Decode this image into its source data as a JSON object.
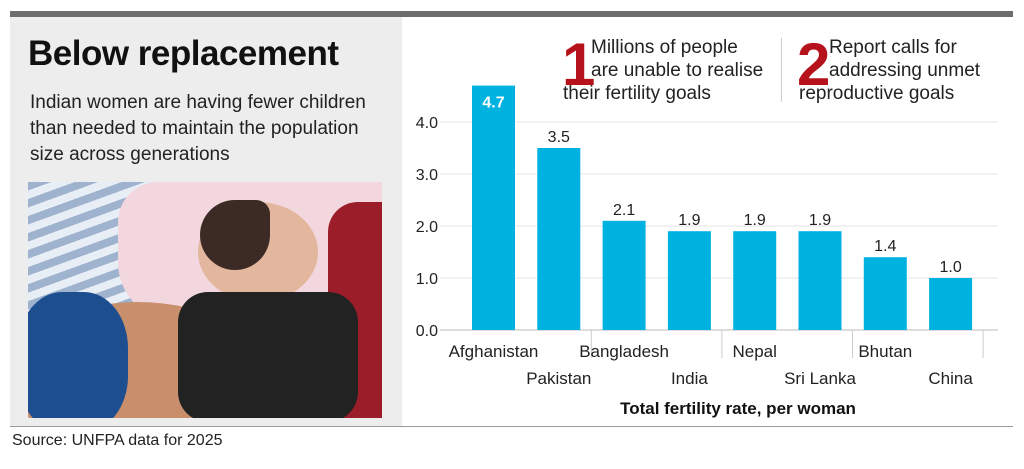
{
  "title": "Below replacement",
  "subtitle": "Indian women are having fewer children than needed to maintain the population size across generations",
  "notes": [
    {
      "number": "1",
      "text_line1": "Millions of people",
      "text_line2": "are unable to realise",
      "text_line3": "their fertility goals"
    },
    {
      "number": "2",
      "text_line1": "Report calls for",
      "text_line2": "addressing unmet",
      "text_line3": "reproductive goals"
    }
  ],
  "source": "Source: UNFPA data for 2025",
  "colors": {
    "bar": "#00b2df",
    "accent": "#b5121b"
  },
  "photo_icon": "mother-and-baby-photo",
  "chart_data": {
    "type": "bar",
    "categories": [
      "Afghanistan",
      "Pakistan",
      "Bangladesh",
      "India",
      "Nepal",
      "Sri Lanka",
      "Bhutan",
      "China"
    ],
    "values": [
      4.7,
      3.5,
      2.1,
      1.9,
      1.9,
      1.9,
      1.4,
      1.0
    ],
    "value_labels": [
      "4.7",
      "3.5",
      "2.1",
      "1.9",
      "1.9",
      "1.9",
      "1.4",
      "1.0"
    ],
    "xlabel": "Total fertility rate, per woman",
    "ylabel": "",
    "ylim": [
      0,
      4.7
    ],
    "yticks": [
      "0.0",
      "1.0",
      "2.0",
      "3.0",
      "4.0"
    ],
    "grid": true
  }
}
